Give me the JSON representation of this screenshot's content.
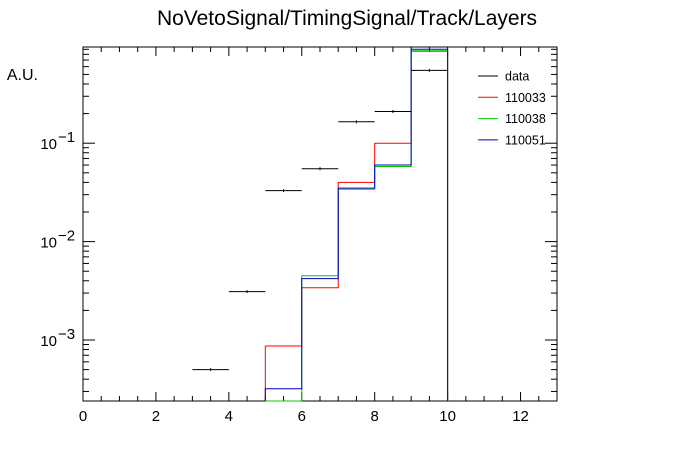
{
  "chart_data": {
    "type": "histogram",
    "title": "NoVetoSignal/TimingSignal/Track/Layers",
    "xlabel": "",
    "ylabel": "A.U.",
    "xlim": [
      0,
      13
    ],
    "ylim": [
      0.00024,
      0.95
    ],
    "yscale": "log",
    "x_ticks": [
      0,
      2,
      4,
      6,
      8,
      10,
      12
    ],
    "y_ticks": [
      {
        "value": 0.001,
        "label_base": "10",
        "label_exp": "−3"
      },
      {
        "value": 0.01,
        "label_base": "10",
        "label_exp": "−2"
      },
      {
        "value": 0.1,
        "label_base": "10",
        "label_exp": "−1"
      }
    ],
    "legend_position": "top-right",
    "data_series": {
      "name": "data",
      "color": "#000000",
      "style": "points",
      "bin_edges": [
        3,
        4,
        5,
        6,
        7,
        8,
        9,
        10
      ],
      "values": [
        0.0005,
        0.0031,
        0.033,
        0.055,
        0.165,
        0.21,
        0.55
      ]
    },
    "series": [
      {
        "name": "110033",
        "color": "#ff0000",
        "bin_edges": [
          5,
          6,
          7,
          8,
          9,
          10
        ],
        "values": [
          0.00087,
          0.0034,
          0.04,
          0.1,
          0.86
        ]
      },
      {
        "name": "110038",
        "color": "#00cc00",
        "bin_edges": [
          5,
          6,
          7,
          8,
          9,
          10
        ],
        "values": [
          0.00024,
          0.0045,
          0.034,
          0.058,
          0.87
        ]
      },
      {
        "name": "110051",
        "color": "#0000cc",
        "bin_edges": [
          5,
          6,
          7,
          8,
          9,
          10
        ],
        "values": [
          0.00032,
          0.0042,
          0.035,
          0.06,
          0.9
        ]
      }
    ]
  }
}
